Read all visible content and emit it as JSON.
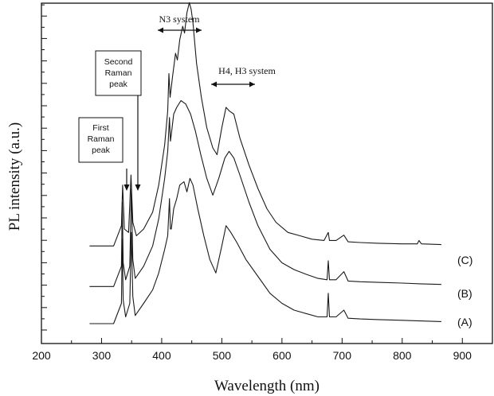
{
  "chart_data": {
    "type": "line",
    "xlabel": "Wavelength (nm)",
    "ylabel": "PL intensity (a.u.)",
    "xlim": [
      200,
      950
    ],
    "xticks": [
      200,
      300,
      400,
      500,
      600,
      700,
      800,
      900
    ],
    "y_tick_labels_shown": false,
    "annotations": {
      "n3": "N3 system",
      "h4h3": "H4, H3 system",
      "first_raman": [
        "First",
        "Raman",
        "peak"
      ],
      "second_raman": [
        "Second",
        "Raman",
        "peak"
      ]
    },
    "series": [
      {
        "name": "(A)",
        "offset": 0.0,
        "x": [
          280,
          320,
          333,
          334.5,
          336,
          340,
          347,
          349.5,
          352,
          356,
          370,
          385,
          395,
          405,
          410,
          413,
          414.5,
          416,
          420,
          425,
          430,
          437,
          442,
          447,
          452,
          460,
          470,
          480,
          490,
          500,
          507,
          515,
          525,
          540,
          560,
          580,
          600,
          620,
          640,
          660,
          675,
          677,
          679,
          690,
          703,
          710,
          730,
          760,
          800,
          830,
          865
        ],
        "y": [
          0.0,
          0.0,
          0.3,
          1.25,
          0.35,
          0.1,
          0.3,
          1.35,
          0.4,
          0.12,
          0.3,
          0.5,
          0.75,
          1.1,
          1.3,
          1.85,
          1.4,
          1.4,
          1.7,
          1.85,
          2.05,
          2.1,
          1.95,
          2.15,
          2.05,
          1.7,
          1.3,
          0.95,
          0.75,
          1.15,
          1.45,
          1.35,
          1.2,
          0.95,
          0.7,
          0.45,
          0.3,
          0.2,
          0.15,
          0.1,
          0.1,
          0.45,
          0.1,
          0.1,
          0.2,
          0.08,
          0.07,
          0.06,
          0.05,
          0.04,
          0.03
        ]
      },
      {
        "name": "(B)",
        "offset": 0.55,
        "x": [
          280,
          320,
          333,
          334.5,
          336,
          340,
          347,
          349.5,
          352,
          356,
          370,
          385,
          395,
          405,
          410,
          413,
          414.5,
          416,
          420,
          425,
          432,
          440,
          448,
          456,
          465,
          475,
          485,
          495,
          505,
          512,
          520,
          530,
          545,
          560,
          580,
          600,
          620,
          640,
          660,
          675,
          677,
          679,
          690,
          703,
          710,
          730,
          760,
          800,
          830,
          865
        ],
        "y": [
          0.0,
          0.0,
          0.3,
          1.25,
          0.35,
          0.1,
          0.3,
          1.45,
          0.4,
          0.12,
          0.3,
          0.6,
          1.0,
          1.6,
          2.0,
          2.5,
          2.15,
          2.25,
          2.55,
          2.65,
          2.75,
          2.7,
          2.55,
          2.3,
          1.95,
          1.6,
          1.35,
          1.6,
          1.9,
          2.0,
          1.9,
          1.65,
          1.25,
          0.9,
          0.55,
          0.35,
          0.25,
          0.18,
          0.12,
          0.1,
          0.38,
          0.1,
          0.1,
          0.22,
          0.08,
          0.07,
          0.06,
          0.05,
          0.04,
          0.03
        ]
      },
      {
        "name": "(C)",
        "offset": 1.15,
        "x": [
          280,
          320,
          333,
          335,
          338,
          345,
          349,
          352,
          358,
          370,
          385,
          395,
          405,
          410,
          412,
          414,
          418,
          423,
          426,
          430,
          435,
          438,
          442,
          446,
          449,
          452,
          458,
          466,
          475,
          485,
          492,
          500,
          507,
          512,
          520,
          530,
          545,
          560,
          575,
          590,
          610,
          630,
          650,
          670,
          677,
          679,
          690,
          703,
          710,
          730,
          760,
          800,
          825,
          828,
          832,
          865
        ],
        "y": [
          0.0,
          0.0,
          0.3,
          0.9,
          0.25,
          0.2,
          1.05,
          0.35,
          0.15,
          0.25,
          0.5,
          0.9,
          1.5,
          2.0,
          2.55,
          2.2,
          2.5,
          2.85,
          2.75,
          3.05,
          3.25,
          3.15,
          3.45,
          3.6,
          3.5,
          3.3,
          2.7,
          2.2,
          1.75,
          1.45,
          1.35,
          1.75,
          2.05,
          2.0,
          1.95,
          1.6,
          1.2,
          0.85,
          0.55,
          0.35,
          0.2,
          0.15,
          0.1,
          0.08,
          0.2,
          0.08,
          0.08,
          0.16,
          0.06,
          0.05,
          0.04,
          0.03,
          0.03,
          0.08,
          0.03,
          0.02
        ]
      }
    ]
  }
}
